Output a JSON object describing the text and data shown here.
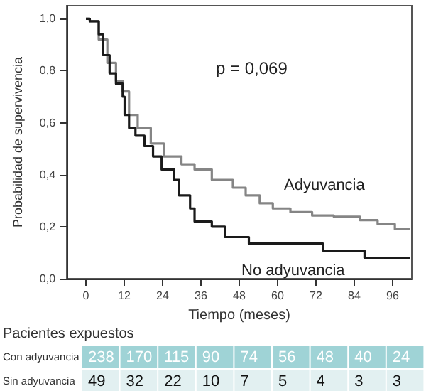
{
  "chart_data": {
    "type": "step",
    "xlabel": "Tiempo (meses)",
    "ylabel": "Probabilidad de supervivencia",
    "xlim": [
      -6,
      102
    ],
    "xticks": [
      0,
      12,
      24,
      36,
      48,
      60,
      72,
      84,
      96
    ],
    "ylim": [
      0,
      1.05
    ],
    "yticks": [
      {
        "value": 0,
        "label": "0,0"
      },
      {
        "value": 0.2,
        "label": "0,2"
      },
      {
        "value": 0.4,
        "label": "0,4"
      },
      {
        "value": 0.6,
        "label": "0,6"
      },
      {
        "value": 0.8,
        "label": "0,8"
      },
      {
        "value": 1,
        "label": "1,0"
      }
    ],
    "grid": false,
    "legend": false,
    "marker": "none",
    "line_style": "solid",
    "series": [
      {
        "name": "Adyuvancia",
        "color": "#858585",
        "x": [
          0,
          1.2,
          4,
          6.7,
          9.4,
          11.5,
          13.5,
          16.2,
          20.3,
          24.4,
          29.9,
          34,
          39.4,
          46,
          50,
          54.4,
          58.5,
          64,
          70.8,
          77.6,
          85.8,
          91.3,
          96.7,
          101.5
        ],
        "values": [
          1,
          0.99,
          0.92,
          0.83,
          0.76,
          0.72,
          0.63,
          0.58,
          0.52,
          0.47,
          0.44,
          0.42,
          0.38,
          0.35,
          0.32,
          0.29,
          0.27,
          0.256,
          0.243,
          0.238,
          0.225,
          0.21,
          0.19,
          0.19
        ]
      },
      {
        "name": "No adyuvancia",
        "color": "#1a1a1a",
        "x": [
          0,
          1.2,
          4,
          5.3,
          7.4,
          9.4,
          11.5,
          12.1,
          13.5,
          15.5,
          18.3,
          21,
          23.7,
          27.6,
          29.2,
          32.6,
          34,
          39.4,
          43.5,
          51,
          74.2,
          87.2,
          101.5
        ],
        "values": [
          1,
          0.99,
          0.94,
          0.86,
          0.79,
          0.75,
          0.7,
          0.63,
          0.58,
          0.55,
          0.51,
          0.47,
          0.42,
          0.38,
          0.32,
          0.27,
          0.22,
          0.2,
          0.16,
          0.135,
          0.108,
          0.08,
          0.08
        ]
      }
    ],
    "annotations": [
      "p = 0,069",
      "Pacientes expuestos",
      "Con adyuvancia",
      "Sin adyuvancia",
      "238",
      "170",
      "115",
      "90",
      "74",
      "56",
      "48",
      "40",
      "24",
      "49",
      "32",
      "22",
      "10",
      "7",
      "5",
      "4",
      "3",
      "3"
    ]
  }
}
